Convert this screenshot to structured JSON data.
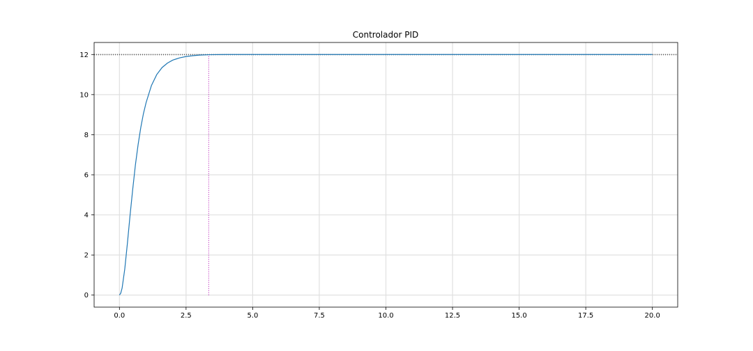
{
  "chart_data": {
    "type": "line",
    "title": "Controlador PID",
    "xlabel": "",
    "ylabel": "",
    "xlim": [
      -0.95,
      20.95
    ],
    "ylim": [
      -0.6,
      12.6
    ],
    "xticks": [
      0.0,
      2.5,
      5.0,
      7.5,
      10.0,
      12.5,
      15.0,
      17.5,
      20.0
    ],
    "xtick_labels": [
      "0.0",
      "2.5",
      "5.0",
      "7.5",
      "10.0",
      "12.5",
      "15.0",
      "17.5",
      "20.0"
    ],
    "yticks": [
      0,
      2,
      4,
      6,
      8,
      10,
      12
    ],
    "ytick_labels": [
      "0",
      "2",
      "4",
      "6",
      "8",
      "10",
      "12"
    ],
    "grid": true,
    "series": [
      {
        "color": "#1f77b4",
        "x": [
          0.0,
          0.05,
          0.1,
          0.2,
          0.3,
          0.4,
          0.5,
          0.6,
          0.7,
          0.8,
          0.9,
          1.0,
          1.2,
          1.4,
          1.6,
          1.8,
          2.0,
          2.25,
          2.5,
          2.75,
          3.0,
          3.35,
          4.0,
          5.0,
          7.5,
          10.0,
          12.5,
          15.0,
          17.5,
          20.0
        ],
        "y": [
          0.0,
          0.1,
          0.35,
          1.3,
          2.6,
          4.0,
          5.3,
          6.5,
          7.5,
          8.35,
          9.05,
          9.6,
          10.45,
          11.0,
          11.35,
          11.57,
          11.72,
          11.83,
          11.9,
          11.94,
          11.97,
          11.99,
          12.0,
          12.0,
          12.0,
          12.0,
          12.0,
          12.0,
          12.0,
          12.0
        ]
      }
    ],
    "reference_lines": [
      {
        "orientation": "horizontal",
        "value": 12.0,
        "style": "dotted",
        "color": "#000000"
      },
      {
        "orientation": "horizontal",
        "value": 11.98,
        "style": "dotted",
        "color": "#8c8c8c"
      },
      {
        "orientation": "vertical",
        "value": 3.35,
        "y_from": 0,
        "y_to": 12,
        "style": "dotted",
        "color": "#b000b0"
      }
    ],
    "colors": {
      "grid": "#e0e0e0",
      "axes": "#000000"
    }
  }
}
